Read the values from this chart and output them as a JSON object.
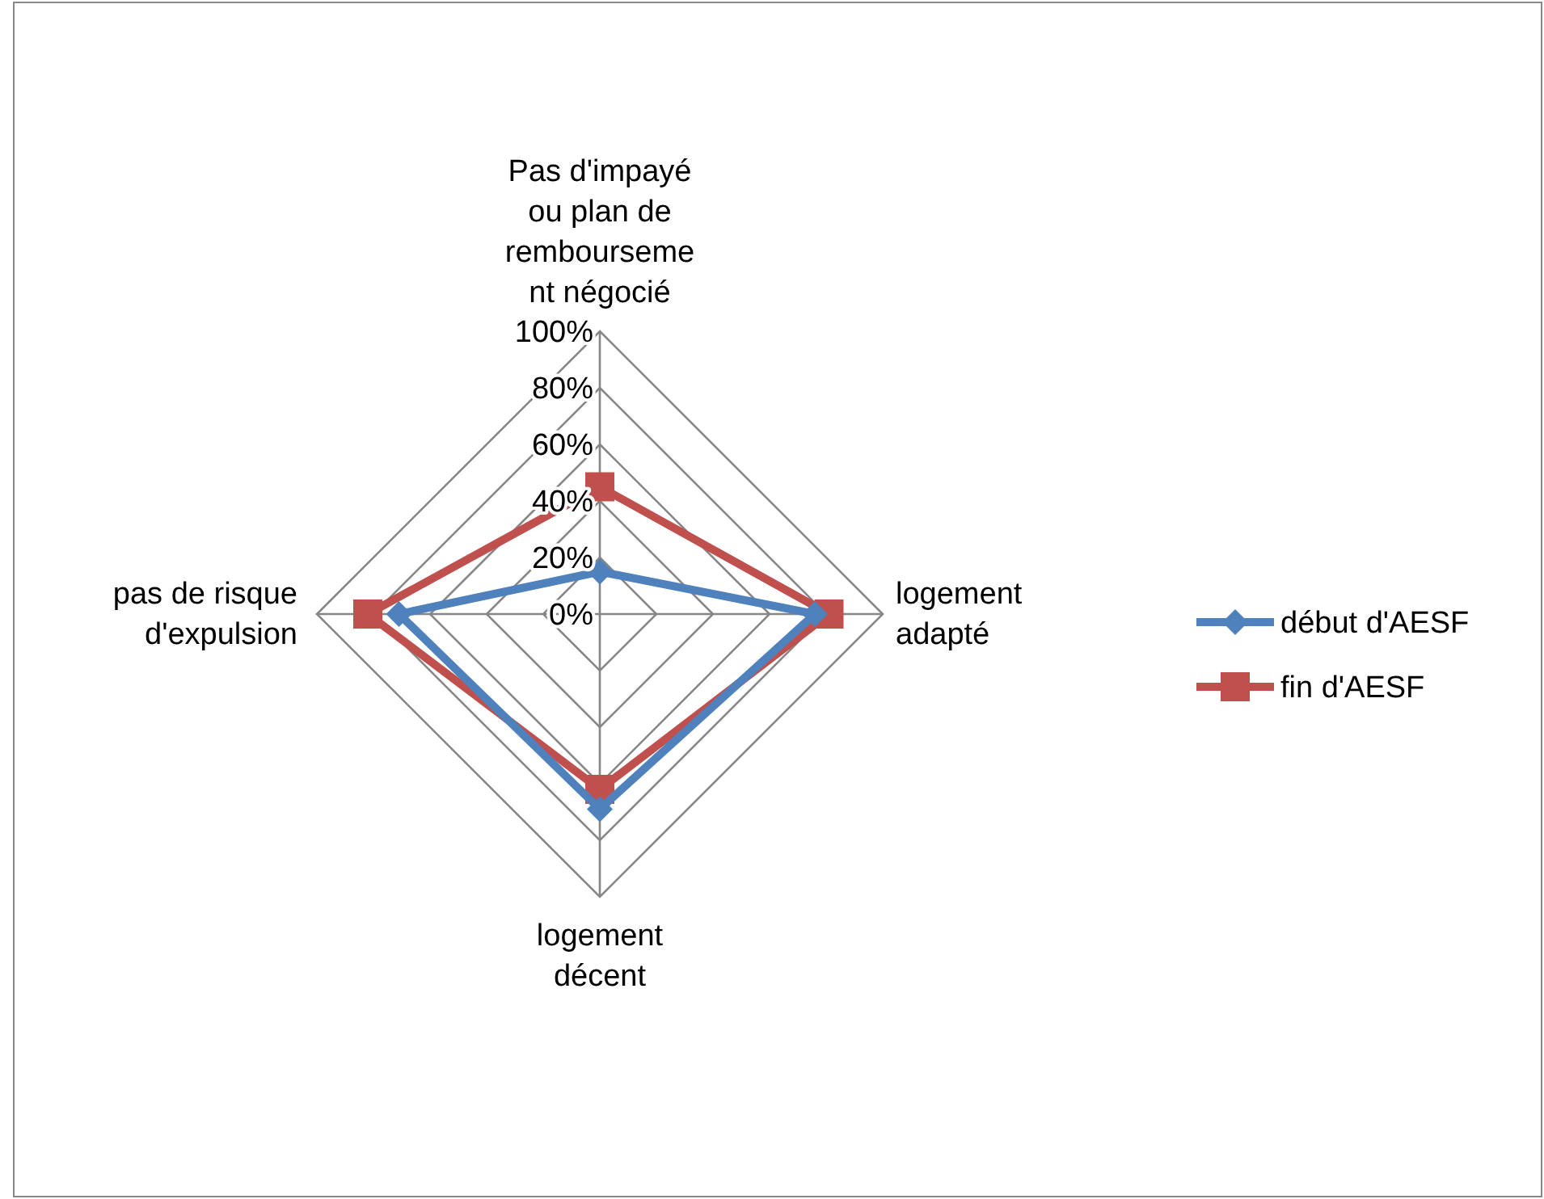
{
  "chart_data": {
    "type": "radar",
    "categories": [
      "Pas d'impayé ou plan de rembourseme nt négocié",
      "logement adapté",
      "logement décent",
      "pas de risque d'expulsion"
    ],
    "series": [
      {
        "name": "début d'AESF",
        "color": "#4f81bd",
        "marker": "diamond",
        "values": [
          15,
          76,
          69,
          71
        ]
      },
      {
        "name": "fin d'AESF",
        "color": "#c0504d",
        "marker": "square",
        "values": [
          45,
          81,
          62,
          82
        ]
      }
    ],
    "ylim": [
      0,
      100
    ],
    "yticks": [
      {
        "value": 0,
        "label": "0%"
      },
      {
        "value": 20,
        "label": "20%"
      },
      {
        "value": 40,
        "label": "40%"
      },
      {
        "value": 60,
        "label": "60%"
      },
      {
        "value": 80,
        "label": "80%"
      },
      {
        "value": 100,
        "label": "100%"
      }
    ],
    "grid": true,
    "legend": "right"
  }
}
